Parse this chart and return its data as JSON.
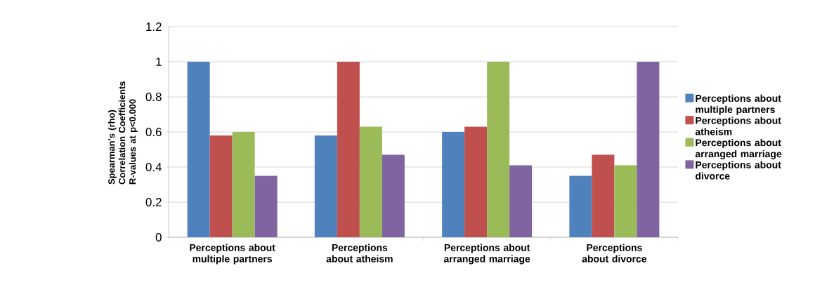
{
  "chart_data": {
    "type": "bar",
    "ylabel": "Spearman's (rho) Correlation Coefficients R-values at p<0.000",
    "categories": [
      "Perceptions about multiple partners",
      "Perceptions about atheism",
      "Perceptions about arranged marriage",
      "Perceptions about divorce"
    ],
    "series": [
      {
        "name": "Perceptions about multiple partners",
        "color": "#4f81bd",
        "values": [
          1,
          0.58,
          0.6,
          0.35
        ]
      },
      {
        "name": "Perceptions about atheism",
        "color": "#c0504d",
        "values": [
          0.58,
          1,
          0.63,
          0.47
        ]
      },
      {
        "name": "Perceptions about arranged marriage",
        "color": "#9bbb59",
        "values": [
          0.6,
          0.63,
          1,
          0.41
        ]
      },
      {
        "name": "Perceptions about divorce",
        "color": "#8064a2",
        "values": [
          0.35,
          0.47,
          0.41,
          1
        ]
      }
    ],
    "ylim": [
      0,
      1.2
    ],
    "yticks": [
      0,
      0.2,
      0.4,
      0.6,
      0.8,
      1,
      1.2
    ],
    "grid": "y",
    "legend": "right"
  }
}
